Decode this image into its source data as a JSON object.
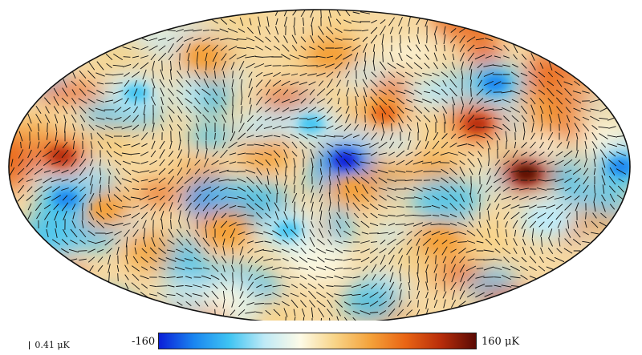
{
  "colorbar": {
    "min_label": "-160",
    "max_label": "160 μK",
    "min_value": -160,
    "max_value": 160,
    "unit": "μK",
    "colors": [
      "#0b1fd8",
      "#1a86f0",
      "#3fc4f2",
      "#bfeaf6",
      "#fdfbe8",
      "#f8d488",
      "#f4a23b",
      "#e96514",
      "#b82d0a",
      "#5a0a04"
    ]
  },
  "polarization_scale": {
    "label": "0.41 μK"
  },
  "map": {
    "projection": "mollweide",
    "hot_spots": [
      {
        "lon": -150,
        "lat": 5,
        "value": 140
      },
      {
        "lon": -130,
        "lat": -20,
        "value": 60
      },
      {
        "lon": 40,
        "lat": 25,
        "value": 80
      },
      {
        "lon": 95,
        "lat": 20,
        "value": 120
      },
      {
        "lon": 120,
        "lat": -3,
        "value": 160
      },
      {
        "lon": 20,
        "lat": -10,
        "value": 70
      },
      {
        "lon": -60,
        "lat": -30,
        "value": 70
      },
      {
        "lon": -95,
        "lat": 55,
        "value": 70
      },
      {
        "lon": 10,
        "lat": 55,
        "value": 60
      },
      {
        "lon": 80,
        "lat": -35,
        "value": 60
      }
    ],
    "cold_spots": [
      {
        "lon": 15,
        "lat": 3,
        "value": -160
      },
      {
        "lon": -5,
        "lat": 20,
        "value": -100
      },
      {
        "lon": 175,
        "lat": 0,
        "value": -140
      },
      {
        "lon": -150,
        "lat": -15,
        "value": -120
      },
      {
        "lon": -120,
        "lat": 35,
        "value": -90
      },
      {
        "lon": 120,
        "lat": 40,
        "value": -110
      },
      {
        "lon": -20,
        "lat": -30,
        "value": -80
      },
      {
        "lon": 140,
        "lat": -25,
        "value": -70
      }
    ]
  }
}
